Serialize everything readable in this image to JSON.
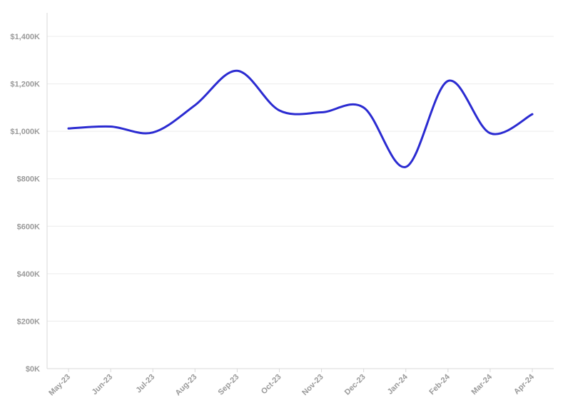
{
  "chart_data": {
    "type": "line",
    "title": "",
    "xlabel": "",
    "ylabel": "",
    "categories": [
      "May-23",
      "Jun-23",
      "Jul-23",
      "Aug-23",
      "Sep-23",
      "Oct-23",
      "Nov-23",
      "Dec-23",
      "Jan-24",
      "Feb-24",
      "Mar-24",
      "Apr-24"
    ],
    "series": [
      {
        "values": [
          1012000,
          1020000,
          995000,
          1110000,
          1255000,
          1088000,
          1080000,
          1100000,
          850000,
          1212000,
          992000,
          1072000
        ]
      }
    ],
    "ylim": [
      0,
      1400000
    ],
    "yticks": [
      0,
      200000,
      400000,
      600000,
      800000,
      1000000,
      1200000,
      1400000
    ],
    "ytick_labels": [
      "$0K",
      "$200K",
      "$400K",
      "$600K",
      "$800K",
      "$1,000K",
      "$1,200K",
      "$1,400K"
    ],
    "grid": true,
    "legend": "none",
    "colors": {
      "line": "#2b2bd1",
      "grid": "#ececec",
      "text": "#9a9a9a"
    }
  }
}
